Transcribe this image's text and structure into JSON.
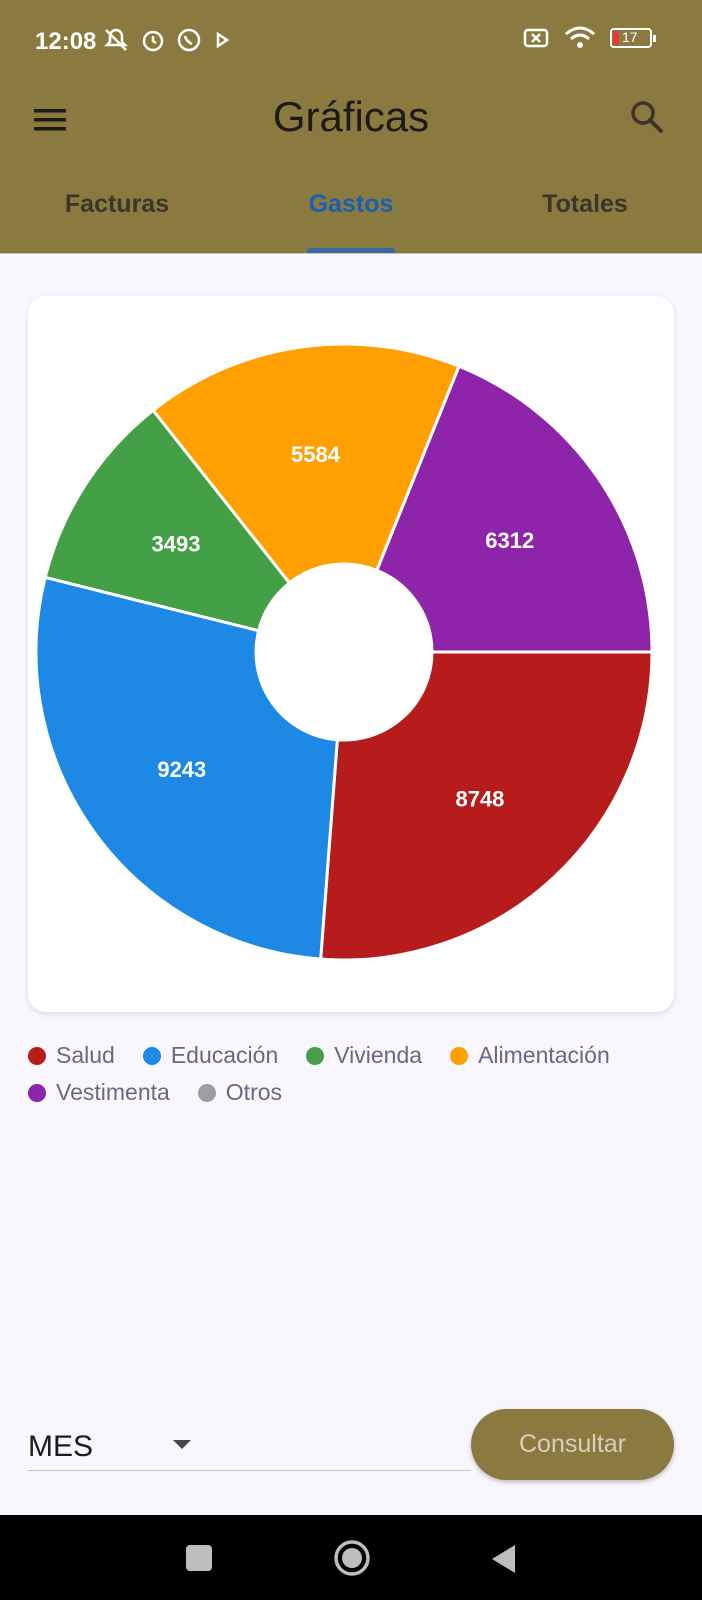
{
  "status_bar": {
    "time": "12:08",
    "battery": "17",
    "icons_left": [
      "mute-icon",
      "alarm-icon",
      "whatsapp-icon",
      "play-icon"
    ],
    "icons_right": [
      "sim-off-icon",
      "wifi-icon",
      "battery-icon"
    ]
  },
  "app_bar": {
    "title": "Gráficas",
    "menu_icon": "menu-icon",
    "search_icon": "search-icon"
  },
  "tabs": [
    {
      "label": "Facturas",
      "active": false
    },
    {
      "label": "Gastos",
      "active": true
    },
    {
      "label": "Totales",
      "active": false
    }
  ],
  "chart_data": {
    "type": "pie",
    "donut": true,
    "slices": [
      {
        "label": "Salud",
        "value": 8748,
        "color": "#b71c1c"
      },
      {
        "label": "Educación",
        "value": 9243,
        "color": "#1e88e5"
      },
      {
        "label": "Vivienda",
        "value": 3493,
        "color": "#43a047"
      },
      {
        "label": "Alimentación",
        "value": 5584,
        "color": "#ffa000"
      },
      {
        "label": "Vestimenta",
        "value": 6312,
        "color": "#8e24aa"
      },
      {
        "label": "Otros",
        "value": 0,
        "color": "#9e9e9e"
      }
    ],
    "legend_position": "bottom",
    "data_labels": true
  },
  "controls": {
    "period_value": "MES",
    "consult_label": "Consultar"
  }
}
